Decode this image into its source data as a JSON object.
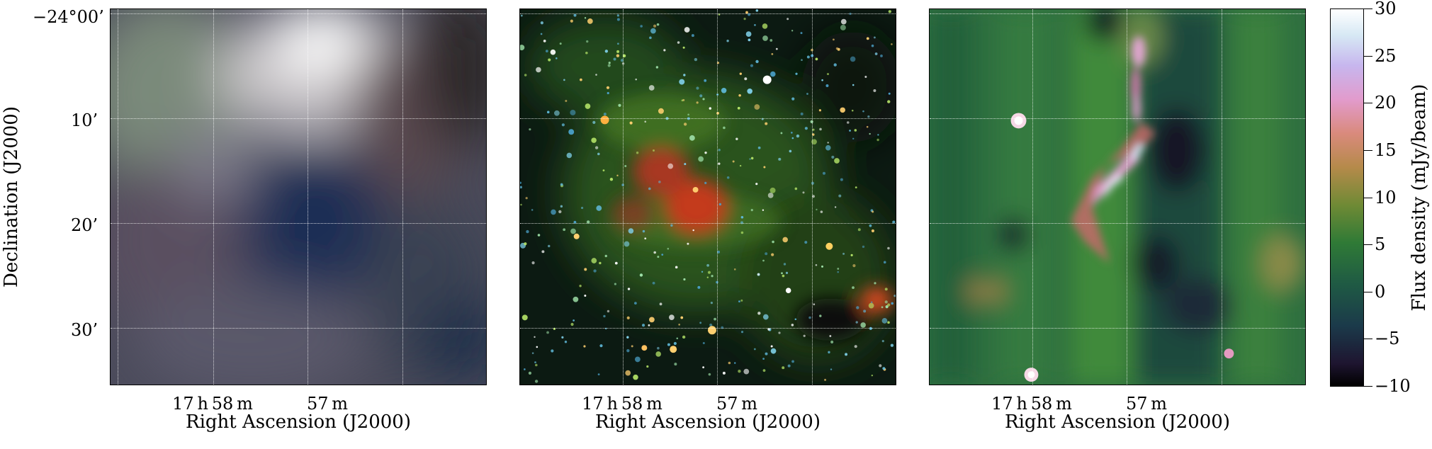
{
  "panels": [
    {
      "name": "left",
      "xlabel": "Right Ascension (J2000)"
    },
    {
      "name": "middle",
      "xlabel": "Right Ascension (J2000)"
    },
    {
      "name": "right",
      "xlabel": "Right Ascension (J2000)"
    }
  ],
  "axes": {
    "ylabel": "Declination (J2000)",
    "y_ticks": [
      "−24°00’",
      "10’",
      "20’",
      "30’"
    ],
    "x_ticks": [
      "17 h 58 m",
      "57 m"
    ]
  },
  "colorbar": {
    "label": "Flux density (mJy/beam)",
    "ticks": [
      "30",
      "25",
      "20",
      "15",
      "10",
      "5",
      "0",
      "−5",
      "−10"
    ],
    "min": -10,
    "max": 30
  }
}
